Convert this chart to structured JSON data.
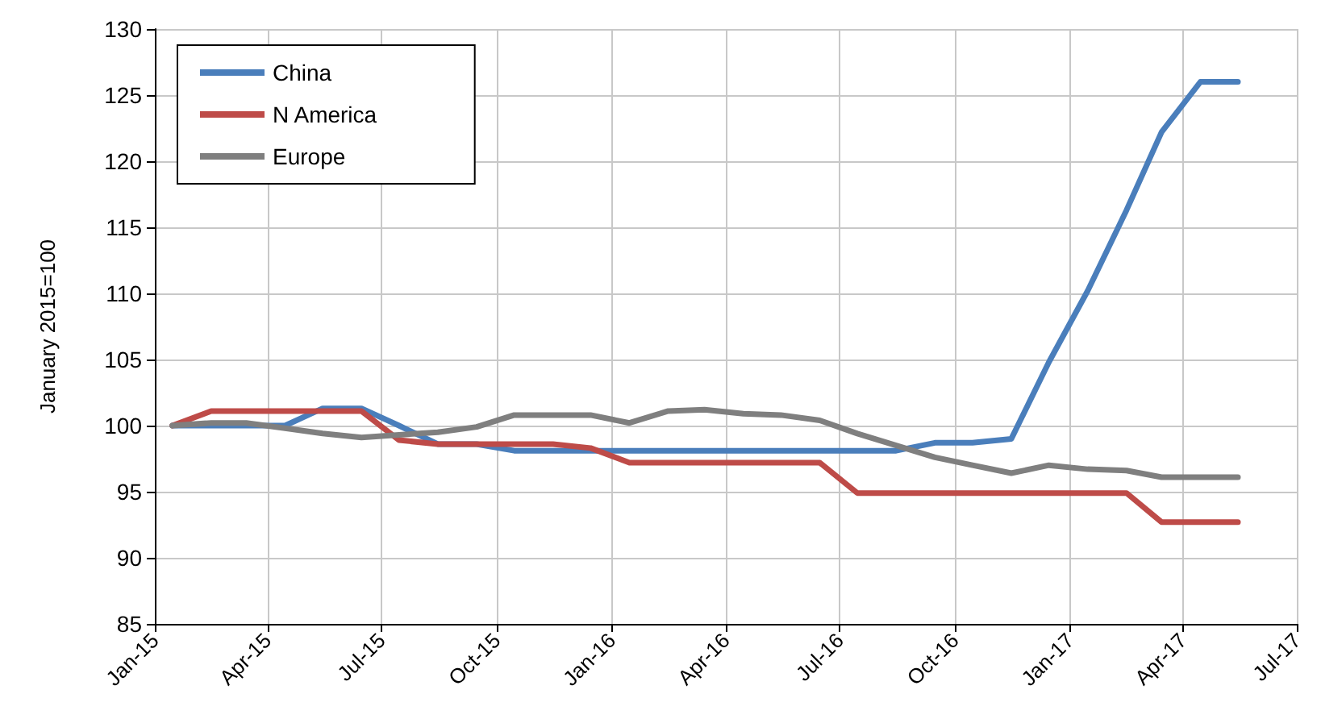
{
  "chart_data": {
    "type": "line",
    "ylabel": "January 2015=100",
    "x": [
      "2015-01-15",
      "2015-02-15",
      "2015-03-15",
      "2015-04-15",
      "2015-05-15",
      "2015-06-15",
      "2015-07-15",
      "2015-08-15",
      "2015-09-15",
      "2015-10-15",
      "2015-11-15",
      "2015-12-15",
      "2016-01-15",
      "2016-02-15",
      "2016-03-15",
      "2016-04-15",
      "2016-05-15",
      "2016-06-15",
      "2016-07-15",
      "2016-08-15",
      "2016-09-15",
      "2016-10-15",
      "2016-11-15",
      "2016-12-15",
      "2017-01-15",
      "2017-02-15",
      "2017-03-15",
      "2017-04-15",
      "2017-05-15"
    ],
    "series": [
      {
        "name": "China",
        "color": "#4a7ebb",
        "values": [
          100,
          100,
          100,
          100,
          101.3,
          101.3,
          100,
          98.6,
          98.6,
          98.1,
          98.1,
          98.1,
          98.1,
          98.1,
          98.1,
          98.1,
          98.1,
          98.1,
          98.1,
          98.1,
          98.7,
          98.7,
          99,
          104.8,
          110.2,
          116.3,
          122.2,
          126,
          126
        ]
      },
      {
        "name": "N America",
        "color": "#be4b48",
        "values": [
          100,
          101.1,
          101.1,
          101.1,
          101.1,
          101.1,
          98.9,
          98.6,
          98.6,
          98.6,
          98.6,
          98.3,
          97.2,
          97.2,
          97.2,
          97.2,
          97.2,
          97.2,
          94.9,
          94.9,
          94.9,
          94.9,
          94.9,
          94.9,
          94.9,
          94.9,
          92.7,
          92.7,
          92.7
        ]
      },
      {
        "name": "Europe",
        "color": "#7f7f7f",
        "values": [
          100,
          100.2,
          100.2,
          99.8,
          99.4,
          99.1,
          99.3,
          99.5,
          99.9,
          100.8,
          100.8,
          100.8,
          100.2,
          101.1,
          101.2,
          100.9,
          100.8,
          100.4,
          99.4,
          98.5,
          97.6,
          97,
          96.4,
          97,
          96.7,
          96.6,
          96.1,
          96.1,
          96.1
        ]
      }
    ],
    "xlim": [
      "2015-01",
      "2017-07"
    ],
    "xticks": [
      {
        "value": "2015-01",
        "label": "Jan-15"
      },
      {
        "value": "2015-04",
        "label": "Apr-15"
      },
      {
        "value": "2015-07",
        "label": "Jul-15"
      },
      {
        "value": "2015-10",
        "label": "Oct-15"
      },
      {
        "value": "2016-01",
        "label": "Jan-16"
      },
      {
        "value": "2016-04",
        "label": "Apr-16"
      },
      {
        "value": "2016-07",
        "label": "Jul-16"
      },
      {
        "value": "2016-10",
        "label": "Oct-16"
      },
      {
        "value": "2017-01",
        "label": "Jan-17"
      },
      {
        "value": "2017-04",
        "label": "Apr-17"
      },
      {
        "value": "2017-07",
        "label": "Jul-17"
      }
    ],
    "ylim": [
      85,
      130
    ],
    "yticks": [
      85,
      90,
      95,
      100,
      105,
      110,
      115,
      120,
      125,
      130
    ],
    "grid": true,
    "legend": "top left",
    "marker": "none",
    "line_style": "solid"
  }
}
